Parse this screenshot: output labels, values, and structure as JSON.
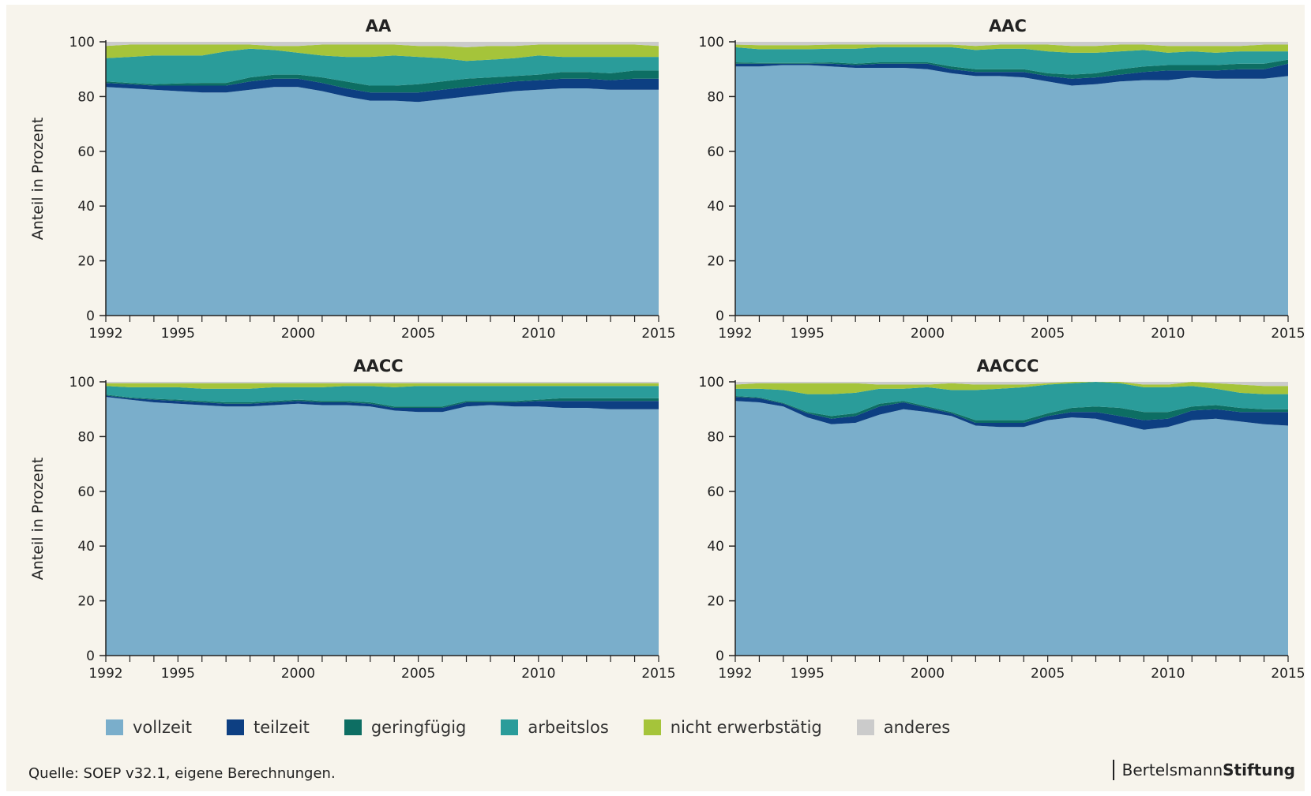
{
  "y_axis_title": "Anteil in Prozent",
  "legend": [
    {
      "label": "vollzeit",
      "color": "#7aaecb"
    },
    {
      "label": "teilzeit",
      "color": "#0d3f82"
    },
    {
      "label": "geringfügig",
      "color": "#0d6e63"
    },
    {
      "label": "arbeitslos",
      "color": "#2a9c9a"
    },
    {
      "label": "nicht erwerbstätig",
      "color": "#a5c43a"
    },
    {
      "label": "anderes",
      "color": "#cbcbcb"
    }
  ],
  "source": "Quelle: SOEP v32.1, eigene Berechnungen.",
  "brand": {
    "part1": "Bertelsmann",
    "part2": "Stiftung"
  },
  "chart_data": [
    {
      "type": "area",
      "stacked": true,
      "title": "AA",
      "ylabel": "Anteil in Prozent",
      "ylim": [
        0,
        100
      ],
      "yticks": [
        0,
        20,
        40,
        60,
        80,
        100
      ],
      "xticks": [
        1992,
        1995,
        2000,
        2005,
        2010,
        2015
      ],
      "x": [
        1992,
        1993,
        1994,
        1995,
        1996,
        1997,
        1998,
        1999,
        2000,
        2001,
        2002,
        2003,
        2004,
        2005,
        2006,
        2007,
        2008,
        2009,
        2010,
        2011,
        2012,
        2013,
        2014,
        2015
      ],
      "series": [
        {
          "name": "vollzeit",
          "values": [
            83.5,
            83,
            82.5,
            82,
            81.5,
            81.5,
            82.5,
            83.5,
            83.5,
            82,
            80,
            78.5,
            78.5,
            78,
            79,
            80,
            81,
            82,
            82.5,
            83,
            83,
            82.5,
            82.5,
            82.5
          ]
        },
        {
          "name": "teilzeit",
          "values": [
            1.5,
            1.5,
            1.5,
            2,
            2.5,
            2.5,
            3,
            3,
            3,
            3,
            3,
            3,
            3,
            3.5,
            3.5,
            3.5,
            3.5,
            3.5,
            3.5,
            3.5,
            3.5,
            3.5,
            4,
            4
          ]
        },
        {
          "name": "geringfügig",
          "values": [
            0.5,
            0.5,
            0.5,
            0.8,
            1,
            1,
            1.5,
            1.5,
            1.5,
            2,
            2.5,
            2.5,
            2.5,
            3,
            3,
            3,
            2.5,
            2,
            2,
            2.5,
            2.5,
            2.5,
            3,
            3
          ]
        },
        {
          "name": "arbeitslos",
          "values": [
            8.5,
            9.5,
            10.5,
            10.2,
            10,
            11.5,
            10.5,
            9,
            8,
            8,
            9,
            10.5,
            11,
            10,
            8.5,
            6.5,
            6.5,
            6.5,
            7,
            5.5,
            5.5,
            6,
            5,
            5
          ]
        },
        {
          "name": "nicht erwerbstätig",
          "values": [
            4.5,
            4.5,
            4,
            4,
            4,
            2.5,
            1.5,
            1.5,
            2.5,
            4,
            4.5,
            4.5,
            4,
            4,
            4.5,
            5,
            5,
            4.5,
            4,
            4.5,
            4.5,
            4.5,
            4.5,
            4
          ]
        },
        {
          "name": "anderes",
          "values": [
            1.5,
            1,
            1,
            1,
            1,
            1,
            1,
            1.5,
            1.5,
            1,
            1,
            1,
            1,
            1.5,
            1.5,
            2,
            1.5,
            1.5,
            1,
            1,
            1,
            1,
            1,
            1.5
          ]
        }
      ]
    },
    {
      "type": "area",
      "stacked": true,
      "title": "AAC",
      "ylim": [
        0,
        100
      ],
      "yticks": [
        0,
        20,
        40,
        60,
        80,
        100
      ],
      "xticks": [
        1992,
        1995,
        2000,
        2005,
        2010,
        2015
      ],
      "x": [
        1992,
        1993,
        1994,
        1995,
        1996,
        1997,
        1998,
        1999,
        2000,
        2001,
        2002,
        2003,
        2004,
        2005,
        2006,
        2007,
        2008,
        2009,
        2010,
        2011,
        2012,
        2013,
        2014,
        2015
      ],
      "series": [
        {
          "name": "vollzeit",
          "values": [
            91,
            91,
            91.5,
            91.5,
            91,
            90.5,
            90.5,
            90.5,
            90,
            88.5,
            87.5,
            87.5,
            87,
            85.5,
            84,
            84.5,
            85.5,
            86,
            86,
            87,
            86.5,
            86.5,
            86.5,
            87.5
          ]
        },
        {
          "name": "teilzeit",
          "values": [
            1,
            1,
            0.5,
            0.5,
            1,
            1,
            1.5,
            1.5,
            2,
            1.5,
            1.5,
            1.5,
            2,
            2,
            2.5,
            2.5,
            2.5,
            3,
            3.5,
            2.5,
            3,
            3.5,
            3.5,
            4.5
          ]
        },
        {
          "name": "geringfügig",
          "values": [
            0.5,
            0.3,
            0.3,
            0.3,
            0.5,
            0.5,
            0.5,
            0.5,
            0.5,
            1,
            1,
            1,
            1,
            1,
            1.5,
            1.5,
            2,
            2,
            2,
            2,
            2,
            2,
            2,
            1.5
          ]
        },
        {
          "name": "arbeitslos",
          "values": [
            5.5,
            5,
            5,
            5,
            5,
            5.5,
            5.5,
            5.5,
            5.5,
            7,
            7,
            7.5,
            7.5,
            8,
            8,
            7.5,
            6.5,
            6,
            4.5,
            5,
            4.5,
            4.5,
            4.5,
            3
          ]
        },
        {
          "name": "nicht erwerbstätig",
          "values": [
            1,
            1.5,
            1.5,
            1.5,
            1.5,
            1.5,
            1,
            1,
            1,
            1,
            1.5,
            1.5,
            1.5,
            2.5,
            2.5,
            2.5,
            2.5,
            2,
            2.5,
            2,
            2.5,
            2,
            2.5,
            2.5
          ]
        },
        {
          "name": "anderes",
          "values": [
            1,
            1.2,
            1.2,
            1.2,
            1,
            1,
            1,
            1,
            1,
            1,
            1.5,
            1,
            1,
            1,
            1.5,
            1.5,
            1,
            1,
            1.5,
            1.5,
            1.5,
            1.5,
            1,
            1
          ]
        }
      ]
    },
    {
      "type": "area",
      "stacked": true,
      "title": "AACC",
      "ylabel": "Anteil in Prozent",
      "ylim": [
        0,
        100
      ],
      "yticks": [
        0,
        20,
        40,
        60,
        80,
        100
      ],
      "xticks": [
        1992,
        1995,
        2000,
        2005,
        2010,
        2015
      ],
      "x": [
        1992,
        1993,
        1994,
        1995,
        1996,
        1997,
        1998,
        1999,
        2000,
        2001,
        2002,
        2003,
        2004,
        2005,
        2006,
        2007,
        2008,
        2009,
        2010,
        2011,
        2012,
        2013,
        2014,
        2015
      ],
      "series": [
        {
          "name": "vollzeit",
          "values": [
            94.5,
            93.5,
            92.5,
            92,
            91.5,
            91,
            91,
            91.5,
            92,
            91.5,
            91.5,
            91,
            89.5,
            89,
            89,
            91,
            91.5,
            91,
            91,
            90.5,
            90.5,
            90,
            90,
            90
          ]
        },
        {
          "name": "teilzeit",
          "values": [
            0.5,
            0.5,
            1,
            1,
            1,
            1,
            1,
            1,
            1,
            1,
            1,
            1,
            1,
            1.5,
            1.5,
            1.5,
            1,
            1.5,
            2,
            2.5,
            2.5,
            3,
            3,
            3
          ]
        },
        {
          "name": "geringfügig",
          "values": [
            0.3,
            0.3,
            0.3,
            0.5,
            0.5,
            0.5,
            0.5,
            0.5,
            0.5,
            0.5,
            0.5,
            0.5,
            0.5,
            0.5,
            0.5,
            0.5,
            0.5,
            0.5,
            0.5,
            1,
            1,
            1,
            1,
            1
          ]
        },
        {
          "name": "arbeitslos",
          "values": [
            3.2,
            3.7,
            4.2,
            4.5,
            4.5,
            5,
            5,
            5,
            4.5,
            5,
            5.5,
            6,
            7,
            7.5,
            7.5,
            5.5,
            5.5,
            5.5,
            5,
            4.5,
            4.5,
            4.5,
            4.5,
            4.5
          ]
        },
        {
          "name": "nicht erwerbstätig",
          "values": [
            1,
            1.5,
            1.5,
            1.5,
            2,
            2,
            2,
            1.5,
            1.5,
            1.5,
            1,
            1,
            1.5,
            1,
            1,
            1,
            1,
            1,
            1,
            1,
            1,
            1,
            1,
            1
          ]
        },
        {
          "name": "anderes",
          "values": [
            0.5,
            0.5,
            0.5,
            0.5,
            0.5,
            0.5,
            0.5,
            0.5,
            0.5,
            0.5,
            0.5,
            0.5,
            0.5,
            0.5,
            0.5,
            0.5,
            0.5,
            0.5,
            0.5,
            0.5,
            0.5,
            0.5,
            0.5,
            0.5
          ]
        }
      ]
    },
    {
      "type": "area",
      "stacked": true,
      "title": "AACCC",
      "ylim": [
        0,
        100
      ],
      "yticks": [
        0,
        20,
        40,
        60,
        80,
        100
      ],
      "xticks": [
        1992,
        1995,
        2000,
        2005,
        2010,
        2015
      ],
      "x": [
        1992,
        1993,
        1994,
        1995,
        1996,
        1997,
        1998,
        1999,
        2000,
        2001,
        2002,
        2003,
        2004,
        2005,
        2006,
        2007,
        2008,
        2009,
        2010,
        2011,
        2012,
        2013,
        2014,
        2015
      ],
      "series": [
        {
          "name": "vollzeit",
          "values": [
            93,
            92.5,
            91,
            87,
            84.5,
            85,
            88,
            90,
            89,
            87.5,
            84,
            83.5,
            83.5,
            86,
            87,
            86.5,
            84.5,
            82.5,
            83.5,
            86,
            86.5,
            85.5,
            84.5,
            84
          ]
        },
        {
          "name": "teilzeit",
          "values": [
            1.5,
            1.5,
            1,
            1.5,
            2,
            2.5,
            3,
            2.5,
            1.5,
            1,
            1,
            1.5,
            1.5,
            1.5,
            2,
            2.5,
            3,
            3.5,
            3,
            3.5,
            3.5,
            3.5,
            4.5,
            5
          ]
        },
        {
          "name": "geringfügig",
          "values": [
            0.3,
            0.3,
            0.3,
            0.5,
            1,
            1,
            1,
            0.5,
            0.5,
            0.5,
            1,
            1,
            1,
            1,
            1.5,
            2,
            3,
            3,
            2.5,
            1.5,
            1.5,
            1.5,
            1,
            1
          ]
        },
        {
          "name": "arbeitslos",
          "values": [
            2.7,
            3.2,
            4.7,
            6.5,
            8,
            7.5,
            5.5,
            4.5,
            7,
            8,
            11,
            11.5,
            12,
            10.5,
            9,
            9,
            9,
            9,
            9,
            7.5,
            6,
            5.5,
            5.5,
            5.5
          ]
        },
        {
          "name": "nicht erwerbstätig",
          "values": [
            1.5,
            2,
            2.5,
            4,
            4,
            3.5,
            1.5,
            1.5,
            1,
            2.5,
            2,
            1.5,
            1,
            0.5,
            0.5,
            0.5,
            0.5,
            1,
            1,
            1.5,
            2,
            3,
            3,
            3
          ]
        },
        {
          "name": "anderes",
          "values": [
            1,
            0.5,
            0.5,
            0.5,
            0.5,
            0.5,
            1,
            1,
            1,
            0.5,
            1,
            1,
            1,
            0.5,
            0,
            0,
            0,
            1,
            1,
            0,
            0.5,
            1,
            1.5,
            1.5
          ]
        }
      ]
    }
  ]
}
